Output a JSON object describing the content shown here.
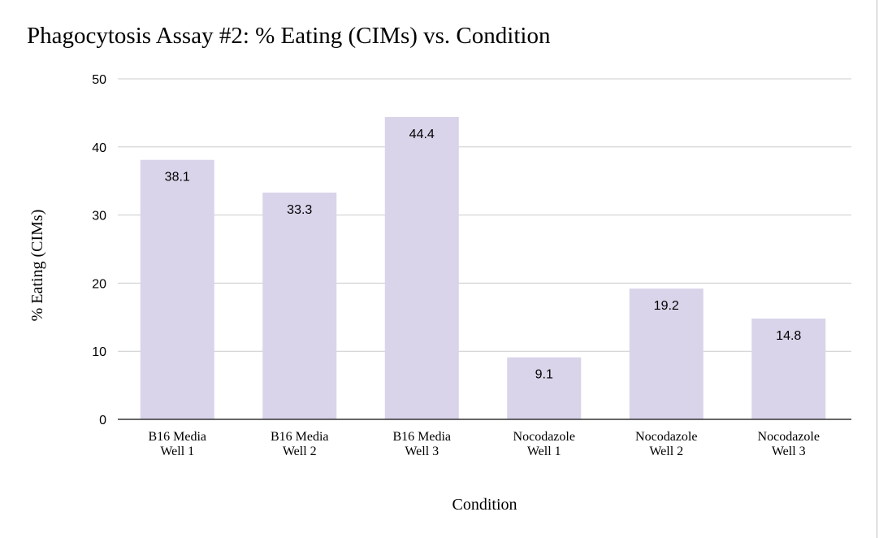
{
  "chart_data": {
    "type": "bar",
    "title": "Phagocytosis Assay #2: % Eating (CIMs) vs. Condition",
    "xlabel": "Condition",
    "ylabel": "% Eating (CIMs)",
    "categories": [
      [
        "B16 Media",
        "Well 1"
      ],
      [
        "B16 Media",
        "Well 2"
      ],
      [
        "B16 Media",
        "Well 3"
      ],
      [
        "Nocodazole",
        "Well 1"
      ],
      [
        "Nocodazole",
        "Well 2"
      ],
      [
        "Nocodazole",
        "Well 3"
      ]
    ],
    "values": [
      38.1,
      33.3,
      44.4,
      9.1,
      19.2,
      14.8
    ],
    "data_labels": [
      "38.1",
      "33.3",
      "44.4",
      "9.1",
      "19.2",
      "14.8"
    ],
    "ylim": [
      0,
      50
    ],
    "yticks": [
      0,
      10,
      20,
      30,
      40,
      50
    ],
    "grid": true,
    "legend": "none",
    "bar_color": "#d9d4ea",
    "grid_color": "#cccccc",
    "axis_color": "#333333"
  }
}
